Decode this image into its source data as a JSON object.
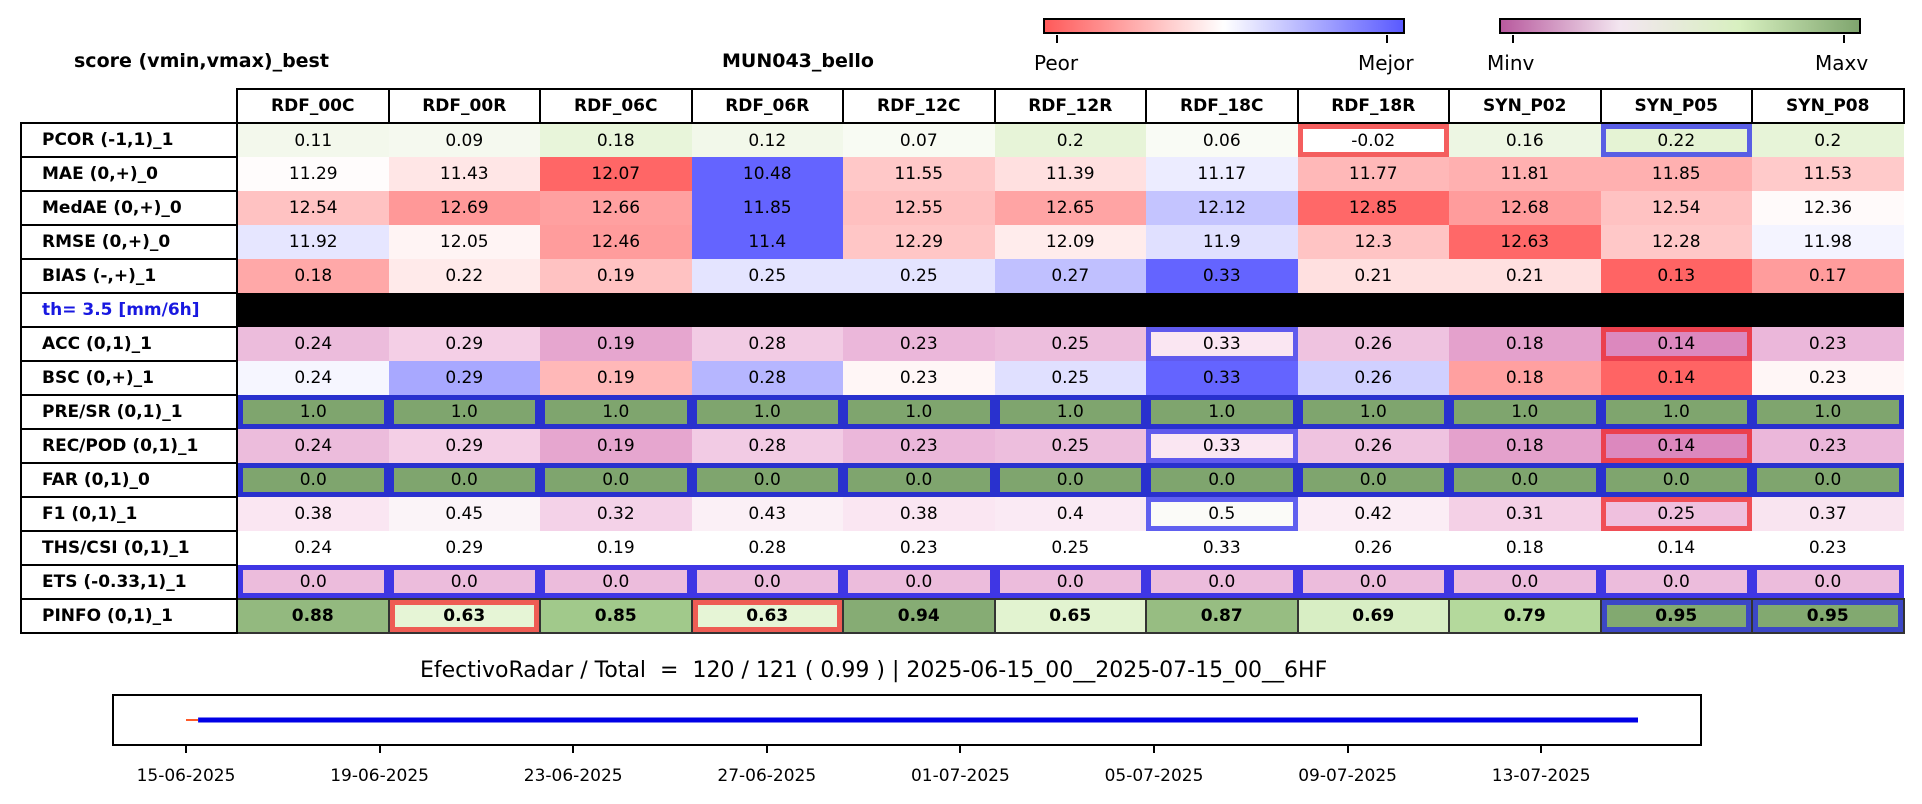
{
  "header": {
    "left_title": "score (vmin,vmax)_best",
    "center_title": "MUN043_bello"
  },
  "colorbars": [
    {
      "min_label": "Peor",
      "max_label": "Mejor",
      "colors": [
        "#ff5a5a",
        "#ffffff",
        "#5a5aff"
      ]
    },
    {
      "min_label": "Minv",
      "max_label": "Maxv",
      "colors": [
        "#b85a9e",
        "#f3e6f0",
        "#d8f0c0",
        "#7fa56e"
      ]
    }
  ],
  "chart_data": {
    "type": "heatmap",
    "columns": [
      "RDF_00C",
      "RDF_00R",
      "RDF_06C",
      "RDF_06R",
      "RDF_12C",
      "RDF_12R",
      "RDF_18C",
      "RDF_18R",
      "SYN_P02",
      "SYN_P05",
      "SYN_P08"
    ],
    "rows": [
      {
        "label": "PCOR (-1,1)_1",
        "values": [
          "0.11",
          "0.09",
          "0.18",
          "0.12",
          "0.07",
          "0.2",
          "0.06",
          "-0.02",
          "0.16",
          "0.22",
          "0.2"
        ],
        "colors": [
          "#f3f8ec",
          "#f5f9ef",
          "#e8f5da",
          "#f2f8ea",
          "#f8fbf3",
          "#e7f4d8",
          "#f9fbf5",
          "#ffffff",
          "#edf6e3",
          "#e5f3d4",
          "#e7f4d8"
        ],
        "worst_index": 7,
        "best_index": 9
      },
      {
        "label": "MAE (0,+)_0",
        "values": [
          "11.29",
          "11.43",
          "12.07",
          "10.48",
          "11.55",
          "11.39",
          "11.17",
          "11.77",
          "11.81",
          "11.85",
          "11.53"
        ],
        "colors": [
          "#fffcfc",
          "#ffe6e6",
          "#ff6666",
          "#6464ff",
          "#ffc8c8",
          "#ffe0e0",
          "#ececff",
          "#ffb8b8",
          "#ffb0b0",
          "#ffb0b0",
          "#ffcaca"
        ]
      },
      {
        "label": "MedAE (0,+)_0",
        "values": [
          "12.54",
          "12.69",
          "12.66",
          "11.85",
          "12.55",
          "12.65",
          "12.12",
          "12.85",
          "12.68",
          "12.54",
          "12.36"
        ],
        "colors": [
          "#ffc2c2",
          "#ff9898",
          "#ffa0a0",
          "#6464ff",
          "#ffc0c0",
          "#ffa4a4",
          "#c4c4ff",
          "#ff6868",
          "#ff9c9c",
          "#ffc2c2",
          "#fffafa"
        ]
      },
      {
        "label": "RMSE (0,+)_0",
        "values": [
          "11.92",
          "12.05",
          "12.46",
          "11.4",
          "12.29",
          "12.09",
          "11.9",
          "12.3",
          "12.63",
          "12.28",
          "11.98"
        ],
        "colors": [
          "#e6e6ff",
          "#fff4f4",
          "#ff9c9c",
          "#6464ff",
          "#ffc6c6",
          "#ffecec",
          "#e0e0ff",
          "#ffc4c4",
          "#ff6868",
          "#ffc8c8",
          "#f4f4ff"
        ]
      },
      {
        "label": "BIAS (-,+)_1",
        "values": [
          "0.18",
          "0.22",
          "0.19",
          "0.25",
          "0.25",
          "0.27",
          "0.33",
          "0.21",
          "0.21",
          "0.13",
          "0.17"
        ],
        "colors": [
          "#ffa8a8",
          "#ffeaea",
          "#ffc2c2",
          "#e4e4ff",
          "#e4e4ff",
          "#c0c0ff",
          "#6464ff",
          "#ffe0e0",
          "#ffe0e0",
          "#ff6464",
          "#ff9c9c"
        ]
      },
      {
        "label": "th= 3.5 [mm/6h]",
        "separator": true
      },
      {
        "label": "ACC (0,1)_1",
        "values": [
          "0.24",
          "0.29",
          "0.19",
          "0.28",
          "0.23",
          "0.25",
          "0.33",
          "0.26",
          "0.18",
          "0.14",
          "0.23"
        ],
        "colors": [
          "#ecbcdc",
          "#f4cfe6",
          "#e6a6cf",
          "#f2cbe4",
          "#ebb7da",
          "#edbedd",
          "#fae6f2",
          "#efc3e0",
          "#e4a1cc",
          "#dc88be",
          "#ebb7da"
        ],
        "worst_index": 9,
        "best_index": 6
      },
      {
        "label": "BSC (0,+)_1",
        "values": [
          "0.24",
          "0.29",
          "0.19",
          "0.28",
          "0.23",
          "0.25",
          "0.33",
          "0.26",
          "0.18",
          "0.14",
          "0.23"
        ],
        "colors": [
          "#f6f6ff",
          "#a8a8ff",
          "#ffb8b8",
          "#b6b6ff",
          "#fff6f6",
          "#e0e0ff",
          "#6464ff",
          "#d0d0ff",
          "#ffa0a0",
          "#ff6464",
          "#fff6f6"
        ]
      },
      {
        "label": "PRE/SR (0,1)_1",
        "values": [
          "1.0",
          "1.0",
          "1.0",
          "1.0",
          "1.0",
          "1.0",
          "1.0",
          "1.0",
          "1.0",
          "1.0",
          "1.0"
        ],
        "colors": [
          "#7fa56e",
          "#7fa56e",
          "#7fa56e",
          "#7fa56e",
          "#7fa56e",
          "#7fa56e",
          "#7fa56e",
          "#7fa56e",
          "#7fa56e",
          "#7fa56e",
          "#7fa56e"
        ],
        "all_best": true
      },
      {
        "label": "REC/POD (0,1)_1",
        "values": [
          "0.24",
          "0.29",
          "0.19",
          "0.28",
          "0.23",
          "0.25",
          "0.33",
          "0.26",
          "0.18",
          "0.14",
          "0.23"
        ],
        "colors": [
          "#ecbcdc",
          "#f4cfe6",
          "#e6a6cf",
          "#f2cbe4",
          "#ebb7da",
          "#edbedd",
          "#fae6f2",
          "#efc3e0",
          "#e4a1cc",
          "#dc88be",
          "#ebb7da"
        ],
        "worst_index": 9,
        "best_index": 6
      },
      {
        "label": "FAR (0,1)_0",
        "values": [
          "0.0",
          "0.0",
          "0.0",
          "0.0",
          "0.0",
          "0.0",
          "0.0",
          "0.0",
          "0.0",
          "0.0",
          "0.0"
        ],
        "colors": [
          "#7fa56e",
          "#7fa56e",
          "#7fa56e",
          "#7fa56e",
          "#7fa56e",
          "#7fa56e",
          "#7fa56e",
          "#7fa56e",
          "#7fa56e",
          "#7fa56e",
          "#7fa56e"
        ],
        "all_best": true
      },
      {
        "label": "F1 (0,1)_1",
        "values": [
          "0.38",
          "0.45",
          "0.32",
          "0.43",
          "0.38",
          "0.4",
          "0.5",
          "0.42",
          "0.31",
          "0.25",
          "0.37"
        ],
        "colors": [
          "#fae6f2",
          "#fbf4f8",
          "#f4d2e8",
          "#fbf0f6",
          "#fae6f2",
          "#faeaf4",
          "#fbfbf8",
          "#fbedf5",
          "#f4d0e6",
          "#efc0de",
          "#f9e4f0"
        ],
        "worst_index": 9,
        "best_index": 6
      },
      {
        "label": "THS/CSI (0,1)_1",
        "values": [
          "0.24",
          "0.29",
          "0.19",
          "0.28",
          "0.23",
          "0.25",
          "0.33",
          "0.26",
          "0.18",
          "0.14",
          "0.23"
        ],
        "colors": [
          "#ffffff",
          "#ffffff",
          "#ffffff",
          "#ffffff",
          "#ffffff",
          "#ffffff",
          "#ffffff",
          "#ffffff",
          "#ffffff",
          "#ffffff",
          "#ffffff"
        ]
      },
      {
        "label": "ETS (-0.33,1)_1",
        "values": [
          "0.0",
          "0.0",
          "0.0",
          "0.0",
          "0.0",
          "0.0",
          "0.0",
          "0.0",
          "0.0",
          "0.0",
          "0.0"
        ],
        "colors": [
          "#ecbcdc",
          "#ecbcdc",
          "#ecbcdc",
          "#ecbcdc",
          "#ecbcdc",
          "#ecbcdc",
          "#ecbcdc",
          "#ecbcdc",
          "#ecbcdc",
          "#ecbcdc",
          "#ecbcdc"
        ],
        "all_best": true
      },
      {
        "label": "PINFO (0,1)_1",
        "values": [
          "0.88",
          "0.63",
          "0.85",
          "0.63",
          "0.94",
          "0.65",
          "0.87",
          "0.69",
          "0.79",
          "0.95",
          "0.95"
        ],
        "colors": [
          "#93b97f",
          "#e6f5d6",
          "#a1c98b",
          "#e6f5d6",
          "#86ac74",
          "#e2f3d0",
          "#97bd82",
          "#d8eec4",
          "#b4d99c",
          "#82a970",
          "#82a970"
        ],
        "worst_indices": [
          1,
          3
        ],
        "best_indices": [
          9,
          10
        ],
        "bold": true
      }
    ],
    "summary": "EfectivoRadar / Total  =  120 / 121 ( 0.99 ) | 2025-06-15_00__2025-07-15_00__6HF",
    "timeline": {
      "x_ticks": [
        "15-06-2025",
        "19-06-2025",
        "23-06-2025",
        "27-06-2025",
        "01-07-2025",
        "05-07-2025",
        "09-07-2025",
        "13-07-2025"
      ],
      "series": [
        {
          "color": "#ff5a2a",
          "start": "2025-06-15T00:00",
          "end": "2025-06-15T06:00"
        },
        {
          "color": "#0000e6",
          "start": "2025-06-15T06:00",
          "end": "2025-07-15T00:00"
        }
      ]
    }
  }
}
